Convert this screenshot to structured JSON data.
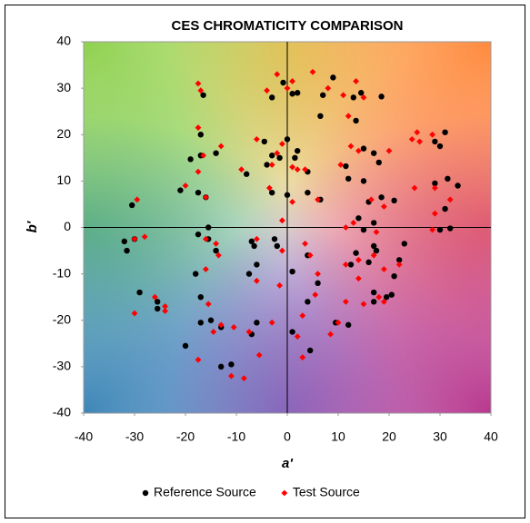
{
  "chart_data": {
    "type": "scatter",
    "title": "CES CHROMATICITY COMPARISON",
    "xlabel": "a'",
    "ylabel": "b'",
    "xlim": [
      -40,
      40
    ],
    "ylim": [
      -40,
      40
    ],
    "xticks": [
      -40,
      -30,
      -20,
      -10,
      0,
      10,
      20,
      30,
      40
    ],
    "yticks": [
      -40,
      -30,
      -20,
      -10,
      0,
      10,
      20,
      30,
      40
    ],
    "grid": false,
    "legend": "bottom",
    "series": [
      {
        "name": "Reference Source",
        "color": "#000000",
        "marker": "circle",
        "x": [
          -0.8,
          1,
          2,
          -3,
          7,
          9,
          13,
          14.5,
          18.5,
          13.5,
          6.5,
          -16.5,
          -17,
          -19,
          -17,
          -14,
          -8,
          -4.5,
          -3,
          -1.5,
          0,
          1.5,
          2,
          4,
          -4,
          11.5,
          15,
          17,
          18,
          15,
          12,
          29,
          30,
          31,
          29,
          31.5,
          33.5,
          31,
          30,
          32,
          21,
          18.5,
          16,
          -30.5,
          -21,
          -17.5,
          -16,
          -3,
          0,
          4,
          6.5,
          14,
          17,
          15,
          -32,
          -31.5,
          -30,
          -17.5,
          -15.5,
          -15.5,
          -14,
          -7,
          -6.5,
          -2.5,
          -2,
          4,
          12.5,
          13.5,
          17,
          17.5,
          16,
          21,
          22,
          23,
          -29,
          -25.5,
          -25.5,
          -18,
          -17,
          -17,
          -15,
          -7.5,
          -6,
          -7,
          1,
          4,
          6,
          12,
          17,
          17,
          19.5,
          20.5,
          9.5,
          -20,
          -13,
          -13,
          -11,
          -6,
          1,
          4.5
        ],
        "values": [
          31.2,
          28.8,
          29,
          28,
          28.5,
          32.3,
          28,
          29,
          28.2,
          23,
          24,
          28.5,
          20,
          14.7,
          15.5,
          16,
          11.5,
          18.5,
          15.5,
          15,
          19,
          15,
          16.5,
          12,
          13.5,
          13.2,
          17,
          16,
          14,
          10,
          10.5,
          18.5,
          17.5,
          20.5,
          9.5,
          10.5,
          9,
          4,
          -0.5,
          -0.2,
          5.8,
          6.5,
          5.5,
          4.8,
          8,
          7.5,
          6.5,
          7.5,
          7,
          7.5,
          6,
          2,
          1,
          -0.5,
          -3,
          -5,
          -2.5,
          -1.5,
          0,
          -2.5,
          -5,
          -3,
          -4,
          -2.5,
          -4,
          -6,
          -8,
          -5.5,
          -4,
          -5,
          -7.5,
          -10.5,
          -7,
          -3.5,
          -14,
          -16,
          -17.5,
          -10,
          -15,
          -20.5,
          -20,
          -10,
          -8,
          -23,
          -9.5,
          -16,
          -12,
          -21,
          -14,
          -16,
          -15,
          -14.5,
          -20.5,
          -25.5,
          -21.5,
          -30,
          -29.5,
          -20.5,
          -22.5,
          -26.5
        ]
      },
      {
        "name": "Test Source",
        "color": "#ff0000",
        "marker": "diamond",
        "x": [
          -17.5,
          -17,
          -4,
          -2,
          0,
          1,
          5,
          8,
          11,
          13.5,
          12,
          15,
          -17.5,
          -16.5,
          -17.5,
          -13,
          -9,
          -6,
          -2,
          -3,
          1,
          2,
          3.5,
          -1,
          10.5,
          12.5,
          14,
          20,
          24.5,
          25.5,
          26,
          28.5,
          29,
          25,
          32,
          -29.5,
          -20,
          -16,
          -3.5,
          1,
          6,
          11.5,
          13,
          16.5,
          19,
          29,
          28.5,
          -30,
          -28,
          -16,
          -14,
          -13.5,
          -6,
          -1,
          -1,
          3.5,
          4.5,
          6,
          11.5,
          14,
          17,
          17.5,
          22,
          19,
          -26,
          -30,
          -24,
          -24,
          -16,
          -15.5,
          -14.5,
          -10.5,
          -7.5,
          -3,
          -6,
          -1.5,
          2,
          5.5,
          3,
          11.5,
          14,
          15,
          18,
          19,
          10,
          -17.5,
          -11,
          -8.5,
          -5.5,
          3,
          8.5,
          -13
        ],
        "values": [
          31,
          29.5,
          29.5,
          33,
          30,
          31.5,
          33.5,
          30,
          28.5,
          31.5,
          24,
          28,
          21.5,
          15.5,
          12,
          17.5,
          12.5,
          19,
          16,
          13.5,
          13,
          12.5,
          12.5,
          18,
          13.5,
          17.5,
          16.5,
          16.5,
          19,
          20.5,
          18.5,
          20,
          8.5,
          8.5,
          6,
          6,
          9,
          6.5,
          8.5,
          5.5,
          6,
          0,
          1,
          6,
          4.5,
          3,
          -0.5,
          -2.5,
          -2,
          -2.5,
          -3.5,
          -6,
          -2.5,
          1.5,
          -5,
          -3.5,
          -6,
          -10,
          -8,
          -7,
          -6,
          -1,
          -8,
          -9,
          -15,
          -18.5,
          -18,
          -17,
          -9,
          -16.5,
          -22.5,
          -21.5,
          -22.5,
          -20.5,
          -11.5,
          -12.5,
          -23.5,
          -14.5,
          -19,
          -16,
          -11,
          -16.5,
          -15,
          -16,
          -20.5,
          -28.5,
          -32,
          -32.5,
          -27.5,
          -28,
          -23,
          -21
        ]
      }
    ]
  }
}
